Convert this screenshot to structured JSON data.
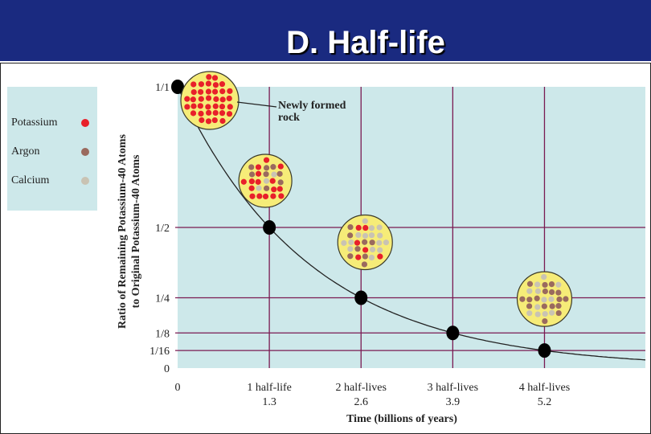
{
  "header": {
    "title": "D. Half-life"
  },
  "legend": [
    {
      "label": "Potassium",
      "color": "#e8202a"
    },
    {
      "label": "Argon",
      "color": "#9a6a5e"
    },
    {
      "label": "Calcium",
      "color": "#c9c3b3"
    }
  ],
  "chart_data": {
    "type": "line",
    "title": "",
    "ylabel_lines": [
      "Ratio of Remaining Potassium-40 Atoms",
      "to Original Potassium-40 Atoms"
    ],
    "xlabel": "Time (billions of years)",
    "x_ticks": [
      {
        "value": 0,
        "line1": "0",
        "line2": ""
      },
      {
        "value": 1,
        "line1": "1 half-life",
        "line2": "1.3"
      },
      {
        "value": 2,
        "line1": "2 half-lives",
        "line2": "2.6"
      },
      {
        "value": 3,
        "line1": "3 half-lives",
        "line2": "3.9"
      },
      {
        "value": 4,
        "line1": "4 half-lives",
        "line2": "5.2"
      }
    ],
    "y_ticks": [
      {
        "value": 1,
        "label": "1/1"
      },
      {
        "value": 0.5,
        "label": "1/2"
      },
      {
        "value": 0.25,
        "label": "1/4"
      },
      {
        "value": 0.125,
        "label": "1/8"
      },
      {
        "value": 0.0625,
        "label": "1/16"
      },
      {
        "value": 0,
        "label": "0"
      }
    ],
    "series": [
      {
        "x": [
          0,
          1,
          2,
          3,
          4
        ],
        "x_billion_years": [
          0,
          1.3,
          2.6,
          3.9,
          5.2
        ],
        "y": [
          1,
          0.5,
          0.25,
          0.125,
          0.0625
        ]
      }
    ],
    "xlim": [
      0,
      5.1
    ],
    "ylim": [
      0,
      1
    ],
    "grid": true,
    "annotations": [
      {
        "text_lines": [
          "Newly formed",
          "rock"
        ],
        "points_to": "rock sample at 0 half-lives"
      }
    ],
    "samples": [
      {
        "at_half_lives": 0,
        "potassium": 1,
        "argon": 0,
        "calcium": 0
      },
      {
        "at_half_lives": 1,
        "potassium": 0.5,
        "argon": 0.25,
        "calcium": 0.25
      },
      {
        "at_half_lives": 2,
        "potassium": 0.25,
        "argon": 0.35,
        "calcium": 0.4
      },
      {
        "at_half_lives": 3,
        "potassium": 0.125,
        "argon": 0.35,
        "calcium": 0.5
      },
      {
        "at_half_lives": 4,
        "potassium": 0.0625,
        "argon": 0.4,
        "calcium": 0.55
      }
    ],
    "colors": {
      "plot_bg": "#cde8ea",
      "grid": "#7a1a52",
      "curve": "#222222",
      "marker": "#000000",
      "rock": "#f6ec78"
    }
  }
}
